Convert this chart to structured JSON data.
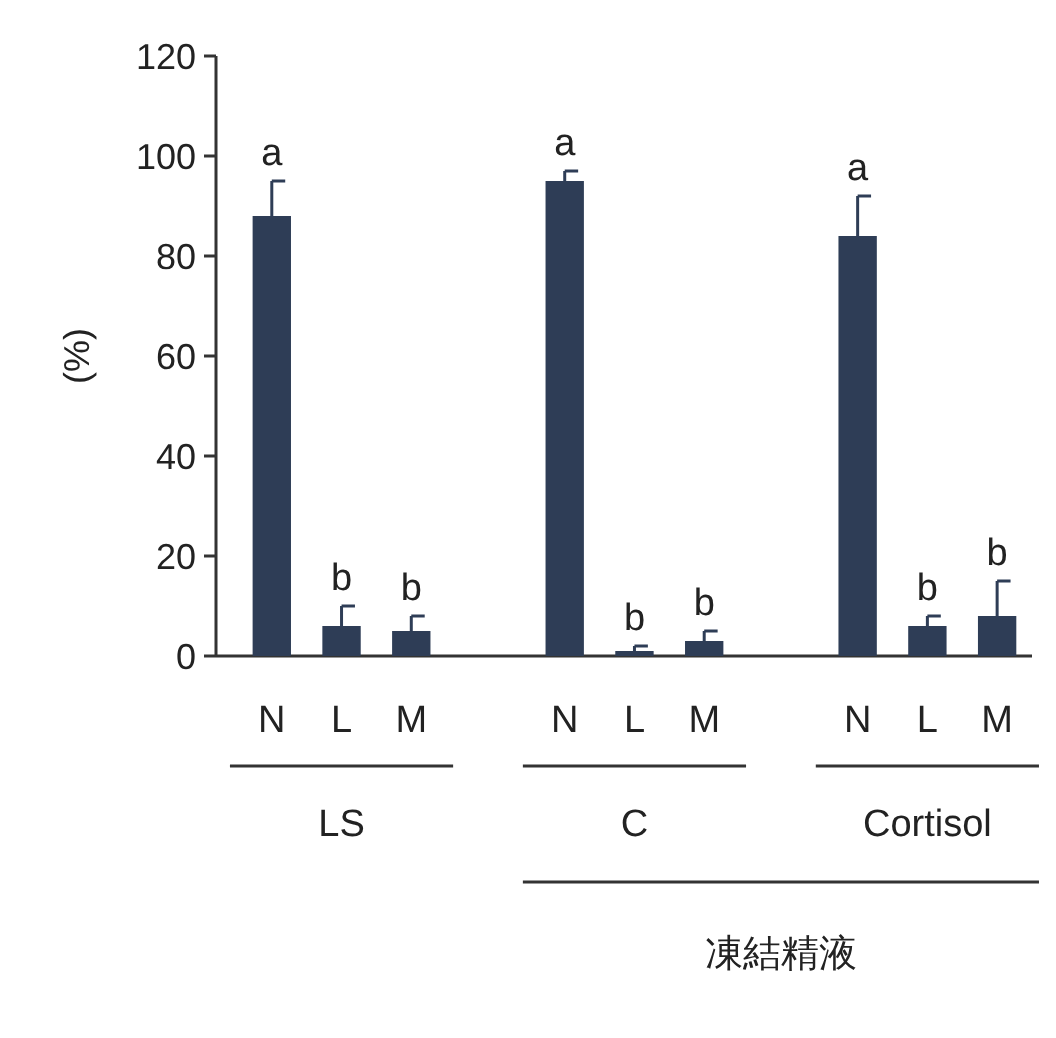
{
  "chart_data": {
    "type": "bar",
    "ylabel": "(%)",
    "categories": [
      "N",
      "L",
      "M",
      "N",
      "L",
      "M",
      "N",
      "L",
      "M"
    ],
    "values": [
      88,
      6,
      5,
      95,
      1,
      3,
      84,
      6,
      8
    ],
    "errors": [
      [
        88,
        95
      ],
      [
        6,
        10
      ],
      [
        5,
        8
      ],
      [
        95,
        97
      ],
      [
        1,
        2
      ],
      [
        3,
        5
      ],
      [
        84,
        92
      ],
      [
        6,
        8
      ],
      [
        8,
        15
      ]
    ],
    "value_labels": [
      "a",
      "b",
      "b",
      "a",
      "b",
      "b",
      "a",
      "b",
      "b"
    ],
    "color": "#2e3d56",
    "ylim": [
      0,
      120
    ],
    "yticks": [
      0,
      20,
      40,
      60,
      80,
      100,
      120
    ],
    "grid": false,
    "annotations": [
      "LS",
      "C",
      "Cortisol",
      "凍結精液"
    ]
  }
}
